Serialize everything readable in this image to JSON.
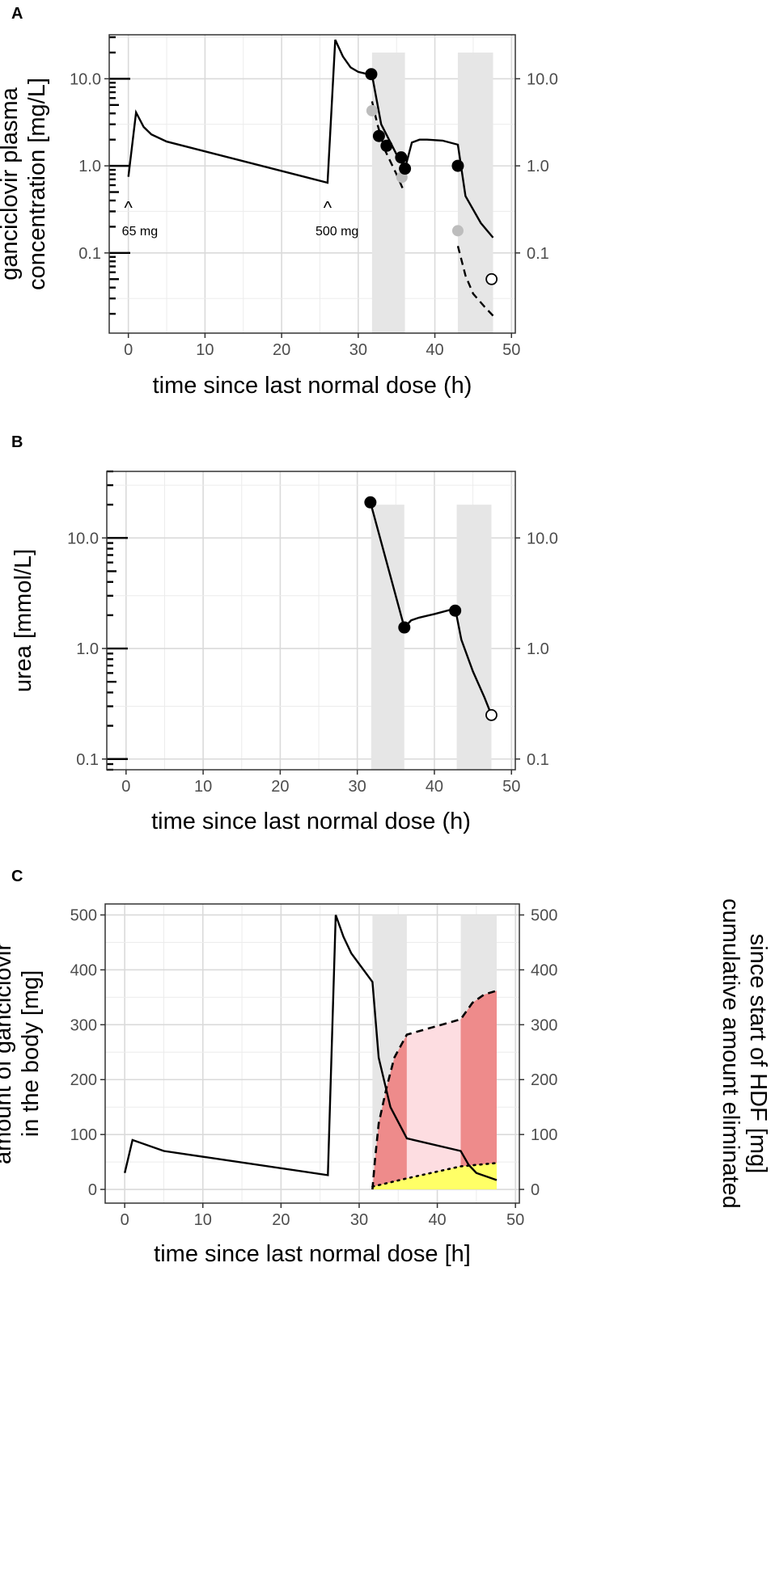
{
  "colors": {
    "panel_bg": "#ffffff",
    "grid_major": "#dadada",
    "grid_minor": "#ececec",
    "hdf_band": "#e6e6e6",
    "point_black": "#000000",
    "point_grey": "#bdbdbd",
    "area_dark_red": "#ee8b8b",
    "area_light_red": "#fddde1",
    "area_yellow": "#ffff66",
    "tick_text": "#4d4d4d"
  },
  "chart_data": [
    {
      "id": "A",
      "panel_label": "A",
      "type": "line",
      "y_scale": "log10",
      "title": "",
      "xlabel": "time since last normal dose (h)",
      "ylabel": [
        "ganciclovir plasma",
        "concentration [mg/L]"
      ],
      "xlim": [
        -2.5,
        50.5
      ],
      "ylim": [
        0.012,
        32
      ],
      "x_ticks": [
        0,
        10,
        20,
        30,
        40,
        50
      ],
      "x_tick_labels": [
        "0",
        "10",
        "20",
        "30",
        "40",
        "50"
      ],
      "y_ticks": [
        0.1,
        1.0,
        10.0
      ],
      "y_tick_labels": [
        "0.1",
        "1.0",
        "10.0"
      ],
      "y_ticks_right": [
        0.1,
        1.0,
        10.0
      ],
      "y_tick_labels_right": [
        "0.1",
        "1.0",
        "10.0"
      ],
      "hdf_windows": [
        [
          31.8,
          36.1
        ],
        [
          43.0,
          47.6
        ]
      ],
      "hdf_band_top": 20,
      "model_line": {
        "x": [
          0,
          1,
          2,
          3,
          5,
          26,
          27,
          28,
          29,
          30,
          31.8,
          33,
          35,
          36.1,
          37,
          38,
          39,
          41,
          43,
          44,
          46,
          47.6
        ],
        "y": [
          0.75,
          4.1,
          2.8,
          2.3,
          1.9,
          0.64,
          28,
          18,
          13.5,
          12,
          11,
          3.0,
          1.35,
          0.93,
          1.85,
          2.0,
          2.0,
          1.95,
          1.75,
          0.45,
          0.22,
          0.15
        ]
      },
      "dashed_line": {
        "x": [
          31.8,
          32.5,
          33.5,
          35,
          35.8
        ],
        "y": [
          5.5,
          3.0,
          1.5,
          0.8,
          0.55
        ],
        "x2": [
          43.0,
          44,
          45,
          46.5,
          47.6
        ],
        "y2": [
          0.12,
          0.055,
          0.034,
          0.024,
          0.019
        ]
      },
      "observed_black": [
        [
          31.7,
          11.3
        ],
        [
          32.7,
          2.2
        ],
        [
          33.7,
          1.7
        ],
        [
          35.6,
          1.25
        ],
        [
          36.1,
          0.93
        ],
        [
          43.0,
          1.0
        ]
      ],
      "observed_grey": [
        [
          31.8,
          4.3
        ],
        [
          35.7,
          0.74
        ],
        [
          43.0,
          0.18
        ]
      ],
      "observed_open": [
        [
          47.4,
          0.05
        ]
      ],
      "dose_annotations": [
        {
          "x": 0,
          "label": "65 mg"
        },
        {
          "x": 26,
          "label": "500 mg"
        }
      ],
      "dose_marker": "^"
    },
    {
      "id": "B",
      "panel_label": "B",
      "type": "line",
      "y_scale": "log10",
      "title": "",
      "xlabel": "time since last normal dose (h)",
      "ylabel": [
        "urea [mmol/L]"
      ],
      "xlim": [
        -2.5,
        50.5
      ],
      "ylim": [
        0.08,
        40
      ],
      "x_ticks": [
        0,
        10,
        20,
        30,
        40,
        50
      ],
      "x_tick_labels": [
        "0",
        "10",
        "20",
        "30",
        "40",
        "50"
      ],
      "y_ticks": [
        0.1,
        1.0,
        10.0
      ],
      "y_tick_labels": [
        "0.1",
        "1.0",
        "10.0"
      ],
      "y_ticks_right": [
        0.1,
        1.0,
        10.0
      ],
      "y_tick_labels_right": [
        "0.1",
        "1.0",
        "10.0"
      ],
      "hdf_windows": [
        [
          31.8,
          36.1
        ],
        [
          42.9,
          47.4
        ]
      ],
      "hdf_band_top": 20,
      "model_line": {
        "x": [
          31.7,
          36.1,
          37,
          38,
          40,
          42.7,
          43.5,
          45,
          46.5,
          47.4
        ],
        "y": [
          21,
          1.55,
          1.8,
          1.9,
          2.05,
          2.3,
          1.2,
          0.62,
          0.36,
          0.25
        ]
      },
      "observed_black": [
        [
          31.7,
          21
        ],
        [
          36.1,
          1.55
        ],
        [
          42.7,
          2.2
        ]
      ],
      "observed_open": [
        [
          47.4,
          0.25
        ]
      ]
    },
    {
      "id": "C",
      "panel_label": "C",
      "type": "area",
      "title": "",
      "xlabel": "time since last normal dose [h]",
      "ylabel": [
        "amount of ganciclovir",
        "in the body [mg]"
      ],
      "ylabel_right": [
        "cumulative amount eliminated",
        "since start of HDF [mg]"
      ],
      "xlim": [
        -2.5,
        50.5
      ],
      "ylim": [
        -25,
        520
      ],
      "x_ticks": [
        0,
        10,
        20,
        30,
        40,
        50
      ],
      "x_tick_labels": [
        "0",
        "10",
        "20",
        "30",
        "40",
        "50"
      ],
      "y_ticks": [
        0,
        100,
        200,
        300,
        400,
        500
      ],
      "y_tick_labels": [
        "0",
        "100",
        "200",
        "300",
        "400",
        "500"
      ],
      "y_ticks_right": [
        0,
        100,
        200,
        300,
        400,
        500
      ],
      "y_tick_labels_right": [
        "0",
        "100",
        "200",
        "300",
        "400",
        "500"
      ],
      "hdf_windows": [
        [
          31.7,
          36.1
        ],
        [
          43.0,
          47.6
        ]
      ],
      "hdf_band_top": 500,
      "body_amount": {
        "x": [
          0,
          1,
          5,
          26,
          27,
          28,
          29,
          31.7,
          32.5,
          34,
          36.1,
          43.0,
          44,
          45,
          47.6
        ],
        "y": [
          30,
          90,
          70,
          26,
          500,
          460,
          430,
          378,
          240,
          150,
          93,
          70,
          45,
          30,
          17
        ]
      },
      "cumulative_eliminated": {
        "x": [
          31.7,
          32,
          32.5,
          33.5,
          34.5,
          36.1,
          43.0,
          44.5,
          46,
          47.6
        ],
        "y": [
          0,
          50,
          120,
          185,
          240,
          282,
          310,
          340,
          355,
          362
        ]
      },
      "extracorporeal_eliminated": {
        "x": [
          31.7,
          36.1,
          43.0,
          47.6
        ],
        "y": [
          5,
          20,
          42,
          48
        ]
      }
    }
  ]
}
